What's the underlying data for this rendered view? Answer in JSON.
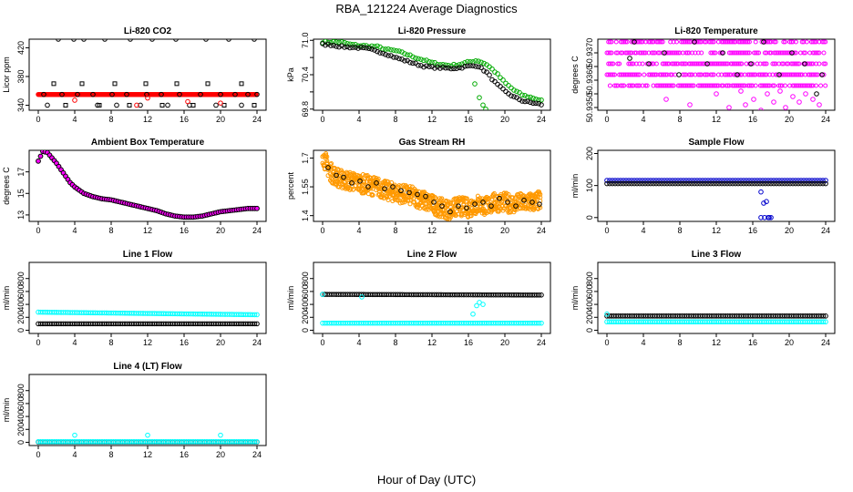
{
  "title": "RBA_121224  Average Diagnostics",
  "xlabel": "Hour of Day (UTC)",
  "chart_data": [
    {
      "type": "scatter",
      "title": "Li-820 CO2",
      "ylabel": "Licor ppm",
      "xlim": [
        -1,
        25
      ],
      "xticks": [
        0,
        4,
        8,
        12,
        16,
        20,
        24
      ],
      "ylim": [
        333,
        432
      ],
      "yticks": [
        340,
        380,
        420
      ],
      "series": [
        {
          "name": "baseline",
          "color": "#ff0000",
          "fill": true,
          "x_start": 0,
          "x_end": 24,
          "step": 0.1,
          "y": [
            355,
            355
          ]
        },
        {
          "name": "black points",
          "color": "#000000",
          "x": [
            0.6,
            1.0,
            2.2,
            2.6,
            3.9,
            4.3,
            5.0,
            6.0,
            6.5,
            7.3,
            8.1,
            8.6,
            9.7,
            10.1,
            11.2,
            11.9,
            12.5,
            13.5,
            14.2,
            15.1,
            15.5,
            16.6,
            17.8,
            18.4,
            19.5,
            20.0,
            20.9,
            21.6,
            22.3,
            23.0,
            23.7,
            24.0
          ],
          "y": [
            355,
            340,
            432,
            355,
            432,
            355,
            432,
            355,
            340,
            432,
            355,
            340,
            355,
            432,
            340,
            355,
            432,
            355,
            340,
            432,
            355,
            340,
            355,
            432,
            340,
            355,
            432,
            355,
            340,
            355,
            432,
            355
          ]
        },
        {
          "name": "black squares",
          "color": "#000000",
          "x": [
            1.7,
            3.0,
            4.8,
            6.7,
            8.4,
            10.0,
            11.8,
            13.6,
            15.2,
            17.0,
            18.6,
            20.4,
            22.3,
            23.7
          ],
          "y": [
            370,
            340,
            370,
            340,
            370,
            340,
            370,
            340,
            370,
            340,
            370,
            340,
            370,
            340
          ]
        },
        {
          "name": "red outliers",
          "color": "#ff0000",
          "x": [
            4.0,
            10.8,
            12.0,
            16.4,
            20.0
          ],
          "y": [
            347,
            340,
            350,
            345,
            343
          ]
        }
      ]
    },
    {
      "type": "scatter",
      "title": "Li-820 Pressure",
      "ylabel": "kPa",
      "xlim": [
        -1,
        25
      ],
      "xticks": [
        0,
        4,
        8,
        12,
        16,
        20,
        24
      ],
      "ylim": [
        69.78,
        71.02
      ],
      "yticks": [
        69.8,
        70.1,
        70.4,
        70.7,
        71.0
      ],
      "ytick_labels": [
        "69.8",
        "",
        "70.4",
        "",
        "71.0"
      ],
      "series": [
        {
          "name": "green trend",
          "color": "#00aa00",
          "x": [
            0,
            1,
            2,
            3,
            4,
            5,
            6,
            7,
            8,
            9,
            10,
            11,
            12,
            13,
            14,
            15,
            16,
            17,
            18,
            19,
            20,
            21,
            22,
            23,
            24
          ],
          "y": [
            70.97,
            70.97,
            70.97,
            70.93,
            70.91,
            70.9,
            70.89,
            70.84,
            70.82,
            70.77,
            70.71,
            70.66,
            70.61,
            70.58,
            70.56,
            70.58,
            70.62,
            70.65,
            70.58,
            70.44,
            70.26,
            70.13,
            70.04,
            70.0,
            69.95
          ]
        },
        {
          "name": "black trend",
          "color": "#000000",
          "x": [
            0,
            1,
            2,
            3,
            4,
            5,
            6,
            7,
            8,
            9,
            10,
            11,
            12,
            13,
            14,
            15,
            16,
            17,
            18,
            19,
            20,
            21,
            22,
            23,
            24
          ],
          "y": [
            70.93,
            70.92,
            70.89,
            70.88,
            70.87,
            70.85,
            70.81,
            70.76,
            70.7,
            70.65,
            70.6,
            70.55,
            70.53,
            70.52,
            70.51,
            70.52,
            70.55,
            70.56,
            70.44,
            70.25,
            70.11,
            70.01,
            69.94,
            69.91,
            69.88
          ]
        },
        {
          "name": "green dropouts",
          "color": "#00aa00",
          "x": [
            16.7,
            17.2,
            17.6,
            17.9
          ],
          "y": [
            70.24,
            70.0,
            69.87,
            69.8
          ]
        }
      ]
    },
    {
      "type": "scatter",
      "title": "Li-820 Temperature",
      "ylabel": "degrees C",
      "xlim": [
        -1,
        25
      ],
      "xticks": [
        0,
        4,
        8,
        12,
        16,
        20,
        24
      ],
      "ylim": [
        50.9349,
        50.9375
      ],
      "yticks": [
        50.935,
        50.9355,
        50.936,
        50.9365,
        50.937
      ],
      "ytick_labels": [
        "50.9350",
        "",
        "50.9360",
        "",
        "50.9370"
      ],
      "series": [
        {
          "name": "magenta rows",
          "color": "#ff00ff",
          "rows": [
            50.9374,
            50.937,
            50.9366,
            50.9362,
            50.9358
          ]
        },
        {
          "name": "magenta scatter",
          "color": "#ff00ff",
          "x": [
            6.5,
            9.1,
            12.0,
            13.4,
            14.7,
            15.2,
            16.1,
            16.9,
            17.6,
            18.3,
            19.0,
            19.6,
            20.4,
            21.1,
            21.8,
            22.6,
            23.3
          ],
          "y": [
            50.9353,
            50.9351,
            50.9355,
            50.935,
            50.9356,
            50.9351,
            50.9353,
            50.9349,
            50.9355,
            50.9352,
            50.9356,
            50.935,
            50.9354,
            50.9352,
            50.9355,
            50.9353,
            50.9351
          ]
        },
        {
          "name": "black points",
          "color": "#000000",
          "x": [
            2.5,
            3.0,
            4.6,
            6.3,
            7.9,
            9.6,
            11.0,
            12.7,
            14.3,
            15.8,
            17.2,
            18.9,
            20.3,
            21.7,
            23.0,
            23.6
          ],
          "y": [
            50.9368,
            50.9374,
            50.9366,
            50.937,
            50.9362,
            50.9374,
            50.9366,
            50.937,
            50.9362,
            50.9366,
            50.9374,
            50.9362,
            50.937,
            50.9366,
            50.9355,
            50.9362
          ]
        }
      ]
    },
    {
      "type": "scatter",
      "title": "Ambient Box Temperature",
      "ylabel": "degrees C",
      "xlim": [
        -1,
        25
      ],
      "xticks": [
        0,
        4,
        8,
        12,
        16,
        20,
        24
      ],
      "ylim": [
        12.4,
        19.0
      ],
      "yticks": [
        13,
        15,
        17
      ],
      "series": [
        {
          "name": "temperature",
          "color": "#000000",
          "fill_color": "#ff00ff",
          "x": [
            0,
            0.5,
            1,
            1.5,
            2,
            2.5,
            3,
            3.5,
            4,
            4.5,
            5,
            6,
            7,
            8,
            9,
            10,
            11,
            12,
            13,
            14,
            15,
            16,
            17,
            18,
            19,
            20,
            21,
            22,
            23,
            24
          ],
          "y": [
            18.0,
            18.9,
            18.8,
            18.3,
            17.8,
            17.2,
            16.6,
            16.0,
            15.6,
            15.3,
            15.0,
            14.7,
            14.5,
            14.4,
            14.2,
            14.0,
            13.8,
            13.6,
            13.4,
            13.1,
            12.9,
            12.8,
            12.8,
            12.9,
            13.1,
            13.3,
            13.4,
            13.5,
            13.6,
            13.6
          ]
        }
      ]
    },
    {
      "type": "scatter",
      "title": "Gas Stream RH",
      "ylabel": "percent",
      "xlim": [
        -1,
        25
      ],
      "xticks": [
        0,
        4,
        8,
        12,
        16,
        20,
        24
      ],
      "ylim": [
        1.37,
        1.74
      ],
      "yticks": [
        1.4,
        1.55,
        1.7
      ],
      "series": [
        {
          "name": "orange band",
          "color": "#ff9900",
          "x": [
            0,
            0.5,
            1,
            2,
            3,
            4,
            5,
            6,
            7,
            8,
            9,
            10,
            11,
            12,
            13,
            14,
            15,
            16,
            17,
            18,
            19,
            20,
            21,
            22,
            23,
            24
          ],
          "y": [
            1.72,
            1.66,
            1.62,
            1.59,
            1.58,
            1.57,
            1.56,
            1.55,
            1.53,
            1.52,
            1.51,
            1.5,
            1.48,
            1.46,
            1.44,
            1.43,
            1.45,
            1.44,
            1.46,
            1.45,
            1.47,
            1.47,
            1.46,
            1.47,
            1.47,
            1.48
          ],
          "spread": 0.05
        },
        {
          "name": "black points",
          "color": "#000000",
          "x": [
            0.6,
            1.5,
            2.3,
            3.2,
            4.1,
            5.0,
            5.9,
            6.8,
            7.7,
            8.6,
            9.5,
            10.4,
            11.3,
            12.2,
            13.1,
            14.0,
            14.9,
            15.8,
            16.7,
            17.6,
            18.5,
            19.4,
            20.3,
            21.2,
            22.1,
            23.0,
            23.8
          ],
          "y": [
            1.65,
            1.61,
            1.6,
            1.57,
            1.58,
            1.55,
            1.57,
            1.54,
            1.55,
            1.53,
            1.52,
            1.51,
            1.5,
            1.47,
            1.45,
            1.42,
            1.45,
            1.44,
            1.46,
            1.47,
            1.45,
            1.49,
            1.47,
            1.45,
            1.48,
            1.47,
            1.46
          ]
        }
      ]
    },
    {
      "type": "scatter",
      "title": "Sample Flow",
      "ylabel": "ml/min",
      "xlim": [
        -1,
        25
      ],
      "xticks": [
        0,
        4,
        8,
        12,
        16,
        20,
        24
      ],
      "ylim": [
        -12,
        210
      ],
      "yticks": [
        0,
        100,
        200
      ],
      "series": [
        {
          "name": "blue trend",
          "color": "#0000cc",
          "x": [
            0,
            24
          ],
          "y": [
            116,
            116
          ]
        },
        {
          "name": "black trend",
          "color": "#000000",
          "x": [
            0,
            24
          ],
          "y": [
            106,
            106
          ]
        },
        {
          "name": "blue dropouts",
          "color": "#0000cc",
          "x": [
            16.9,
            17.2,
            17.5,
            17.8,
            16.9,
            17.3,
            17.7,
            18.0
          ],
          "y": [
            80,
            45,
            50,
            0,
            0,
            0,
            0,
            0
          ]
        }
      ]
    },
    {
      "type": "scatter",
      "title": "Line 1 Flow",
      "ylabel": "ml/min",
      "xlim": [
        -1,
        25
      ],
      "xticks": [
        0,
        4,
        8,
        12,
        16,
        20,
        24
      ],
      "ylim": [
        -50,
        1050
      ],
      "yticks": [
        0,
        200,
        400,
        600,
        800
      ],
      "series": [
        {
          "name": "cyan flow",
          "color": "#00ffff",
          "x": [
            0,
            24
          ],
          "y": [
            280,
            240
          ]
        },
        {
          "name": "black flow",
          "color": "#000000",
          "x": [
            0,
            24
          ],
          "y": [
            100,
            100
          ]
        }
      ]
    },
    {
      "type": "scatter",
      "title": "Line 2 Flow",
      "ylabel": "ml/min",
      "xlim": [
        -1,
        25
      ],
      "xticks": [
        0,
        4,
        8,
        12,
        16,
        20,
        24
      ],
      "ylim": [
        -50,
        1050
      ],
      "yticks": [
        0,
        200,
        400,
        600,
        800
      ],
      "series": [
        {
          "name": "black flow",
          "color": "#000000",
          "x": [
            0,
            24
          ],
          "y": [
            555,
            545
          ]
        },
        {
          "name": "cyan flow",
          "color": "#00ffff",
          "x": [
            0,
            24
          ],
          "y": [
            110,
            110
          ]
        },
        {
          "name": "cyan dropouts",
          "color": "#00ffff",
          "x": [
            0,
            16.5,
            16.9,
            17.2,
            17.6,
            4.3
          ],
          "y": [
            555,
            250,
            380,
            430,
            400,
            515
          ]
        }
      ]
    },
    {
      "type": "scatter",
      "title": "Line 3 Flow",
      "ylabel": "ml/min",
      "xlim": [
        -1,
        25
      ],
      "xticks": [
        0,
        4,
        8,
        12,
        16,
        20,
        24
      ],
      "ylim": [
        -50,
        1050
      ],
      "yticks": [
        0,
        200,
        400,
        600,
        800
      ],
      "series": [
        {
          "name": "black flow",
          "color": "#000000",
          "x": [
            0,
            24
          ],
          "y": [
            220,
            220
          ]
        },
        {
          "name": "cyan flow",
          "color": "#00ffff",
          "x": [
            0,
            24
          ],
          "y": [
            130,
            130
          ]
        },
        {
          "name": "cyan outliers",
          "color": "#00ffff",
          "x": [
            0,
            0.1
          ],
          "y": [
            250,
            80
          ]
        }
      ]
    },
    {
      "type": "scatter",
      "title": "Line 4 (LT) Flow",
      "ylabel": "ml/min",
      "xlim": [
        -1,
        25
      ],
      "xticks": [
        0,
        4,
        8,
        12,
        16,
        20,
        24
      ],
      "ylim": [
        -50,
        1050
      ],
      "yticks": [
        0,
        200,
        400,
        600,
        800
      ],
      "series": [
        {
          "name": "black flow",
          "color": "#000000",
          "x": [
            0,
            24
          ],
          "y": [
            5,
            5
          ]
        },
        {
          "name": "cyan flow",
          "color": "#00ffff",
          "x": [
            0,
            24
          ],
          "y": [
            10,
            10
          ]
        },
        {
          "name": "cyan spikes",
          "color": "#00ffff",
          "x": [
            4.0,
            12.0,
            20.0
          ],
          "y": [
            110,
            110,
            110
          ]
        }
      ]
    }
  ]
}
